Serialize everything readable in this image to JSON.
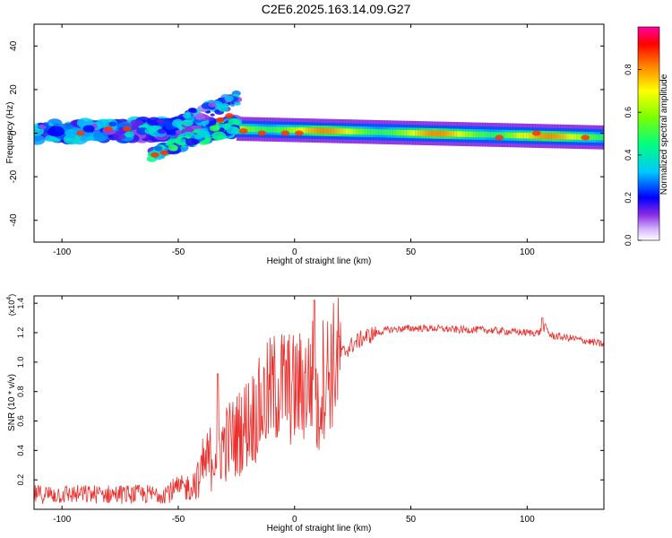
{
  "title": "C2E6.2025.163.14.09.G27",
  "chart_data": [
    {
      "type": "heatmap",
      "name": "spectrogram",
      "xlabel": "Height of straight line (km)",
      "ylabel": "Frequency (Hz)",
      "xlim": [
        -112,
        133
      ],
      "ylim": [
        -50,
        50
      ],
      "xticks": [
        -100,
        -50,
        0,
        50,
        100
      ],
      "yticks": [
        -40,
        -20,
        0,
        20,
        40
      ],
      "colorbar": {
        "label": "Normalized spectral amplitude",
        "range": [
          0,
          1
        ],
        "ticks": [
          "0.0",
          "0.2",
          "0.4",
          "0.6",
          "0.8"
        ],
        "tick_values": [
          0.0,
          0.2,
          0.4,
          0.6,
          0.8
        ],
        "colormap": "rainbow (white-purple-blue-cyan-green-yellow-red-magenta)"
      },
      "bands": [
        {
          "x": [
            -112,
            -25
          ],
          "center_freq": [
            -1,
            5
          ],
          "amplitude": 0.35,
          "note": "noisy scattered band"
        },
        {
          "x": [
            -65,
            -25
          ],
          "center_freq": [
            -10,
            10
          ],
          "amplitude": 0.3,
          "note": "lower branch rising"
        },
        {
          "x": [
            -50,
            -25
          ],
          "center_freq": [
            8,
            18
          ],
          "amplitude": 0.25,
          "note": "upper branch rising"
        },
        {
          "x": [
            -25,
            133
          ],
          "center_freq": [
            2,
            -2
          ],
          "amplitude": 0.7,
          "note": "strong steady band"
        }
      ]
    },
    {
      "type": "line",
      "name": "snr",
      "xlabel": "Height of straight line (km)",
      "ylabel": "SNR (10 * v/v)",
      "exponent_label": "(x10",
      "exponent_power": "4",
      "exponent_close": ")",
      "xlim": [
        -112,
        133
      ],
      "ylim": [
        0,
        1.45
      ],
      "xticks": [
        -100,
        -50,
        0,
        50,
        100
      ],
      "yticks": [
        0.2,
        0.4,
        0.6,
        0.8,
        1.0,
        1.2,
        1.4
      ],
      "ytick_labels": [
        "0.2",
        "0.4",
        "0.6",
        "0.8",
        "1.0",
        "1.2",
        "1.4"
      ],
      "color": "#e8302d",
      "envelope": {
        "x": [
          -112,
          -90,
          -60,
          -45,
          -38,
          -35,
          -30,
          -25,
          -20,
          -15,
          -10,
          -5,
          0,
          5,
          8,
          10,
          12,
          15,
          20,
          25,
          30,
          40,
          50,
          60,
          70,
          80,
          90,
          100,
          105,
          108,
          110,
          120,
          133
        ],
        "y": [
          0.12,
          0.12,
          0.12,
          0.18,
          0.3,
          0.38,
          0.45,
          0.5,
          0.6,
          0.68,
          0.8,
          0.85,
          0.8,
          0.85,
          0.9,
          0.62,
          0.9,
          0.95,
          1.05,
          1.12,
          1.17,
          1.22,
          1.23,
          1.23,
          1.22,
          1.22,
          1.21,
          1.2,
          1.2,
          1.24,
          1.18,
          1.16,
          1.12
        ]
      }
    }
  ]
}
